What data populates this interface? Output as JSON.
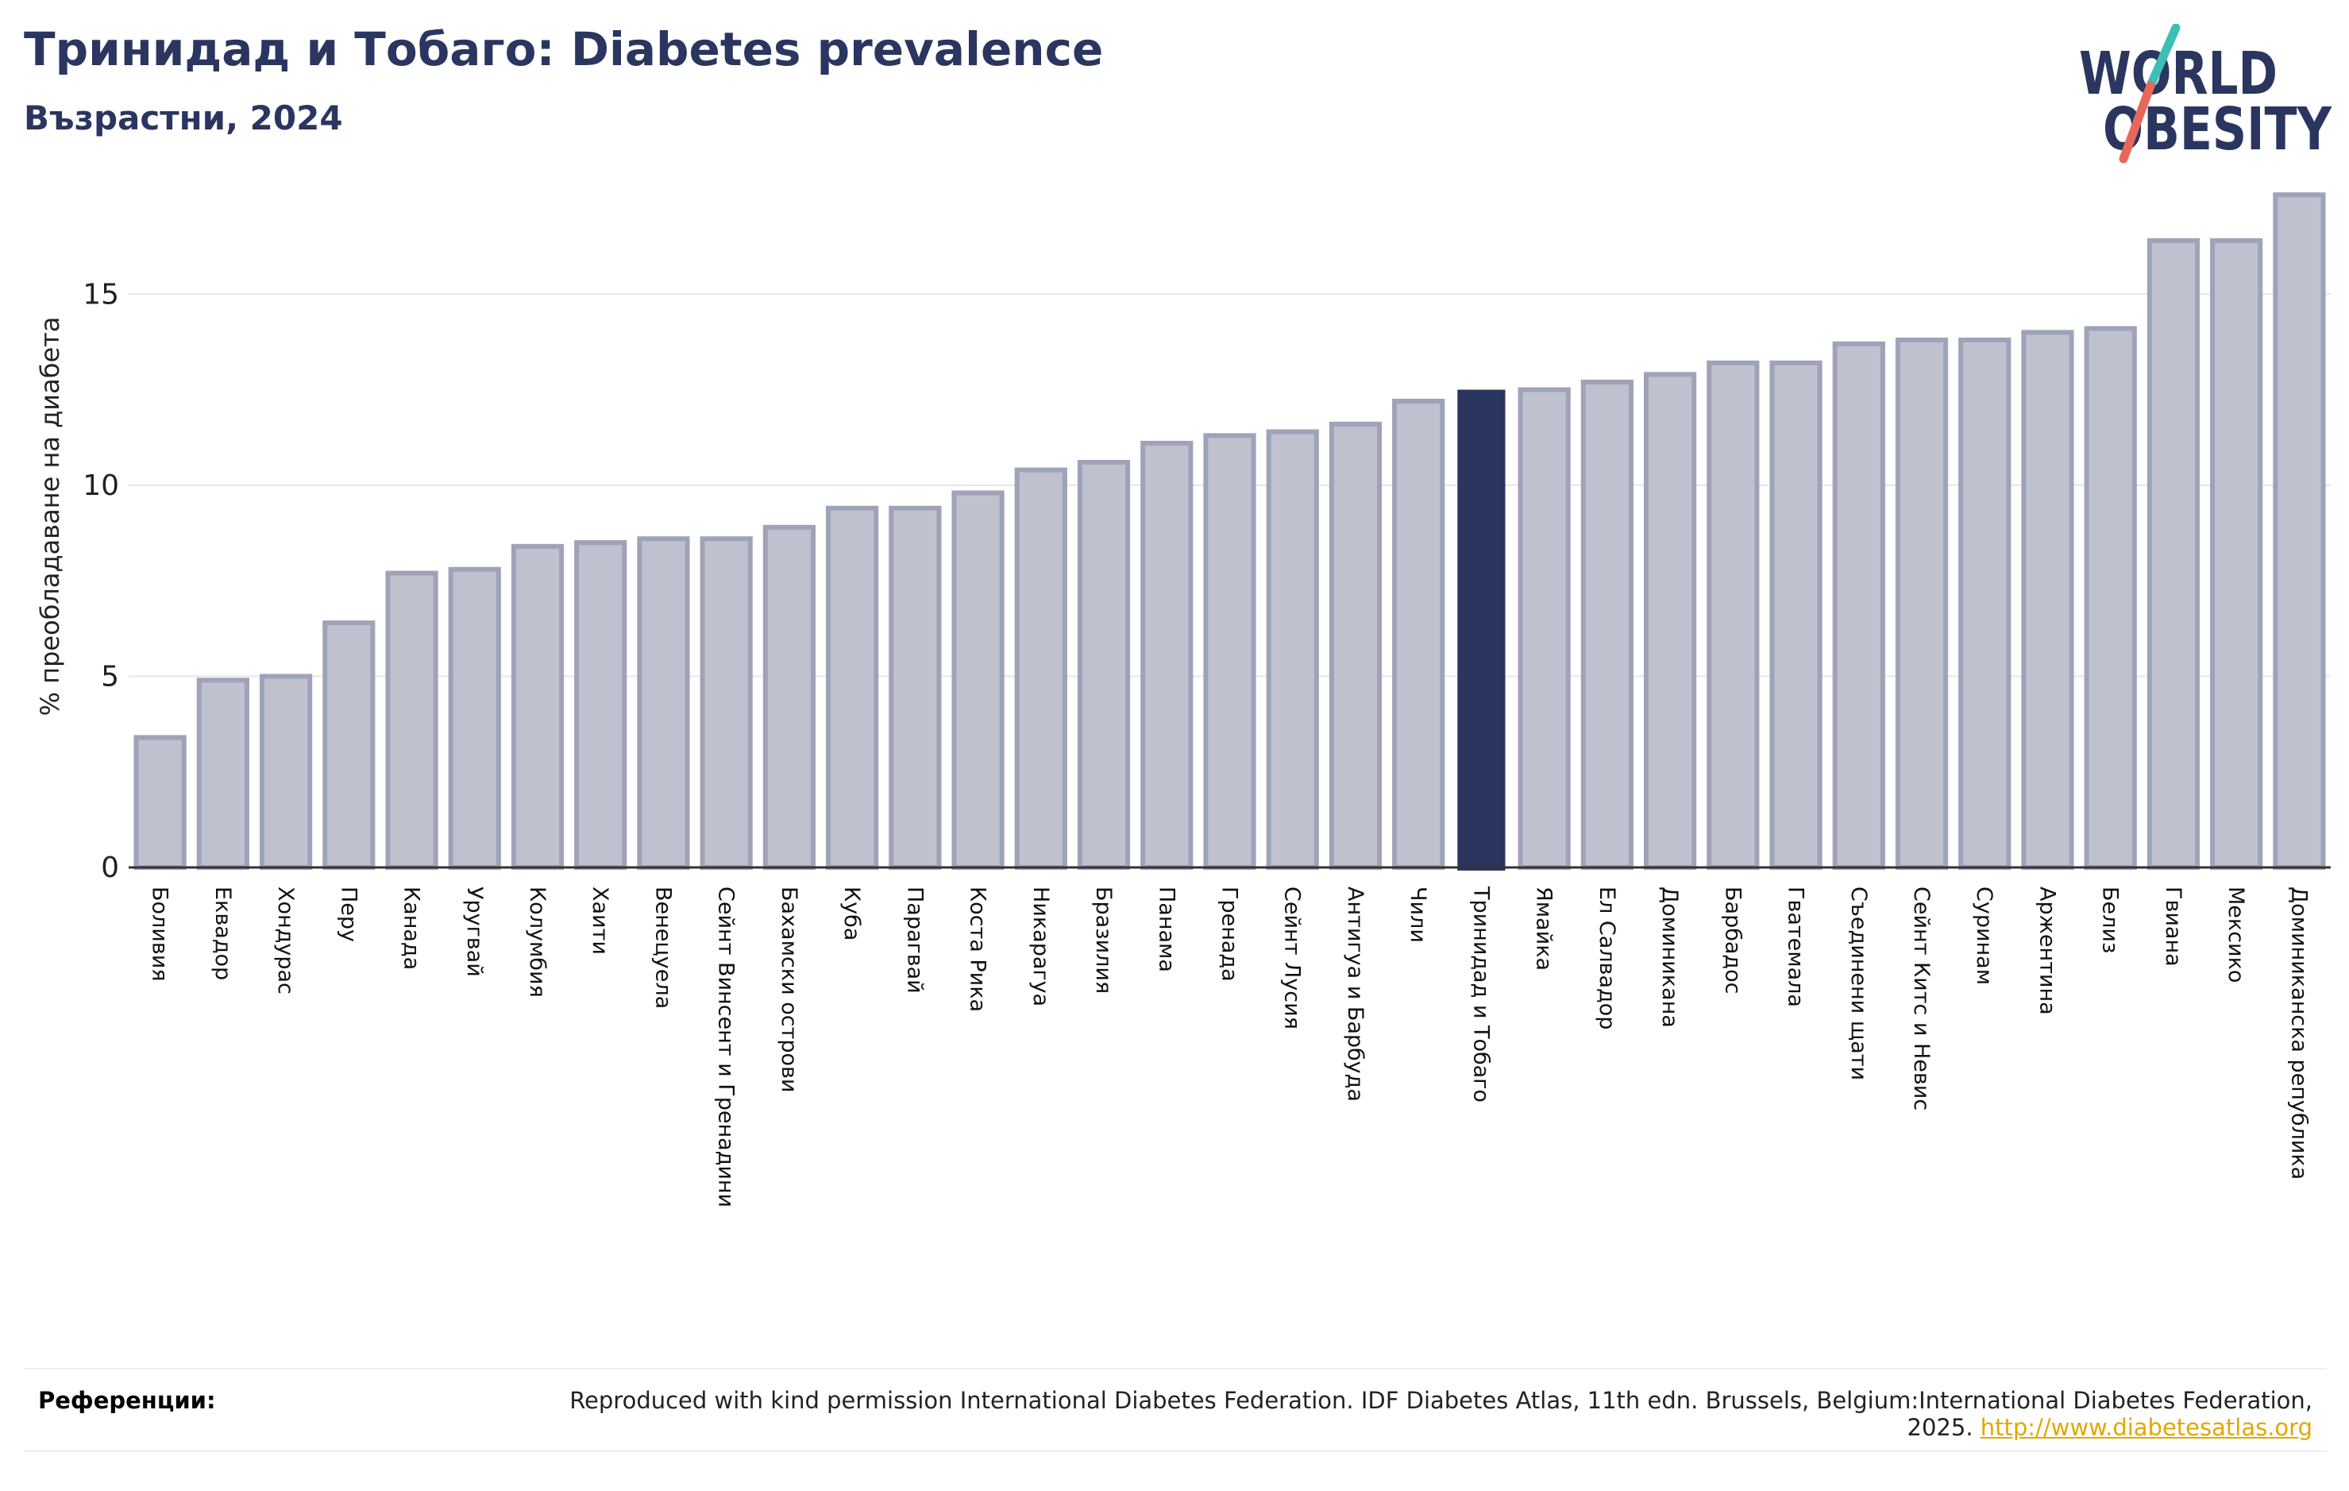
{
  "header": {
    "title": "Тринидад и Тобаго: Diabetes prevalence",
    "subtitle": "Възрастни, 2024"
  },
  "logo": {
    "line1": "WORLD",
    "line2": "OBESITY",
    "colors": {
      "text": "#2a3560",
      "slash_top": "#3cbfb4",
      "slash_bottom": "#e8665a"
    }
  },
  "colors": {
    "bar_fill": "#bfc1cf",
    "bar_stroke": "#9ea3b8",
    "highlight": "#2a3560",
    "grid": "#e6e6e6",
    "axis": "#333333"
  },
  "chart_data": {
    "type": "bar",
    "title": "Тринидад и Тобаго: Diabetes prevalence",
    "subtitle": "Възрастни, 2024",
    "ylabel": "% преобладаване на диабета",
    "xlabel": "",
    "ylim": [
      0,
      17.5
    ],
    "yticks": [
      0,
      5,
      10,
      15
    ],
    "grid": true,
    "highlight": "Тринидад и Тобаго",
    "categories": [
      "Боливия",
      "Еквадор",
      "Хондурас",
      "Перу",
      "Канада",
      "Уругвай",
      "Колумбия",
      "Хаити",
      "Венецуела",
      "Сейнт Винсент и Гренадини",
      "Бахамски острови",
      "Куба",
      "Парагвай",
      "Коста Рика",
      "Никарагуа",
      "Бразилия",
      "Панама",
      "Гренада",
      "Сейнт Лусия",
      "Антигуа и Барбуда",
      "Чили",
      "Тринидад и Тобаго",
      "Ямайка",
      "Ел Салвадор",
      "Доминикана",
      "Барбадос",
      "Гватемала",
      "Съединени щати",
      "Сейнт Китс и Невис",
      "Суринам",
      "Аржентина",
      "Белиз",
      "Гвиана",
      "Мексико",
      "Доминиканска република"
    ],
    "values": [
      3.4,
      4.9,
      5.0,
      6.4,
      7.7,
      7.8,
      8.4,
      8.5,
      8.6,
      8.6,
      8.9,
      9.4,
      9.4,
      9.8,
      10.4,
      10.6,
      11.1,
      11.3,
      11.4,
      11.6,
      12.2,
      12.5,
      12.5,
      12.7,
      12.9,
      13.2,
      13.2,
      13.7,
      13.8,
      13.8,
      14.0,
      14.1,
      16.4,
      16.4,
      17.6
    ]
  },
  "footer": {
    "label": "Референции:",
    "text": "Reproduced with kind permission International Diabetes Federation. IDF Diabetes Atlas, 11th edn. Brussels, Belgium:International Diabetes Federation, 2025.",
    "link": "http://www.diabetesatlas.org"
  }
}
